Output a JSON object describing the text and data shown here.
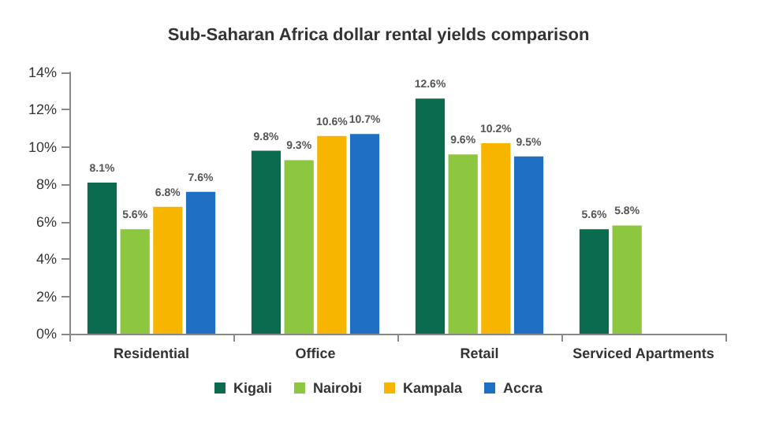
{
  "chart_data": {
    "type": "bar",
    "title": "Sub-Saharan Africa dollar rental yields comparison",
    "categories": [
      "Residential",
      "Office",
      "Retail",
      "Serviced Apartments"
    ],
    "series": [
      {
        "name": "Kigali",
        "color": "#0b6b4f",
        "values": [
          8.1,
          9.8,
          12.6,
          5.6
        ],
        "value_labels": [
          "8.1%",
          "9.8%",
          "12.6%",
          "5.6%"
        ]
      },
      {
        "name": "Nairobi",
        "color": "#8dc63f",
        "values": [
          5.6,
          9.3,
          9.6,
          5.8
        ],
        "value_labels": [
          "5.6%",
          "9.3%",
          "9.6%",
          "5.8%"
        ]
      },
      {
        "name": "Kampala",
        "color": "#f7b500",
        "values": [
          6.8,
          10.6,
          10.2,
          null
        ],
        "value_labels": [
          "6.8%",
          "10.6%",
          "10.2%",
          null
        ]
      },
      {
        "name": "Accra",
        "color": "#1f6fc4",
        "values": [
          7.6,
          10.7,
          9.5,
          null
        ],
        "value_labels": [
          "7.6%",
          "10.7%",
          "9.5%",
          null
        ]
      }
    ],
    "ylim": [
      0,
      14
    ],
    "yticks": [
      {
        "value": 0,
        "label": "0%"
      },
      {
        "value": 2,
        "label": "2%"
      },
      {
        "value": 4,
        "label": "4%"
      },
      {
        "value": 6,
        "label": "6%"
      },
      {
        "value": 8,
        "label": "8%"
      },
      {
        "value": 10,
        "label": "10%"
      },
      {
        "value": 12,
        "label": "12%"
      },
      {
        "value": 14,
        "label": "14%"
      }
    ],
    "grid": false,
    "legend": "bottom"
  }
}
